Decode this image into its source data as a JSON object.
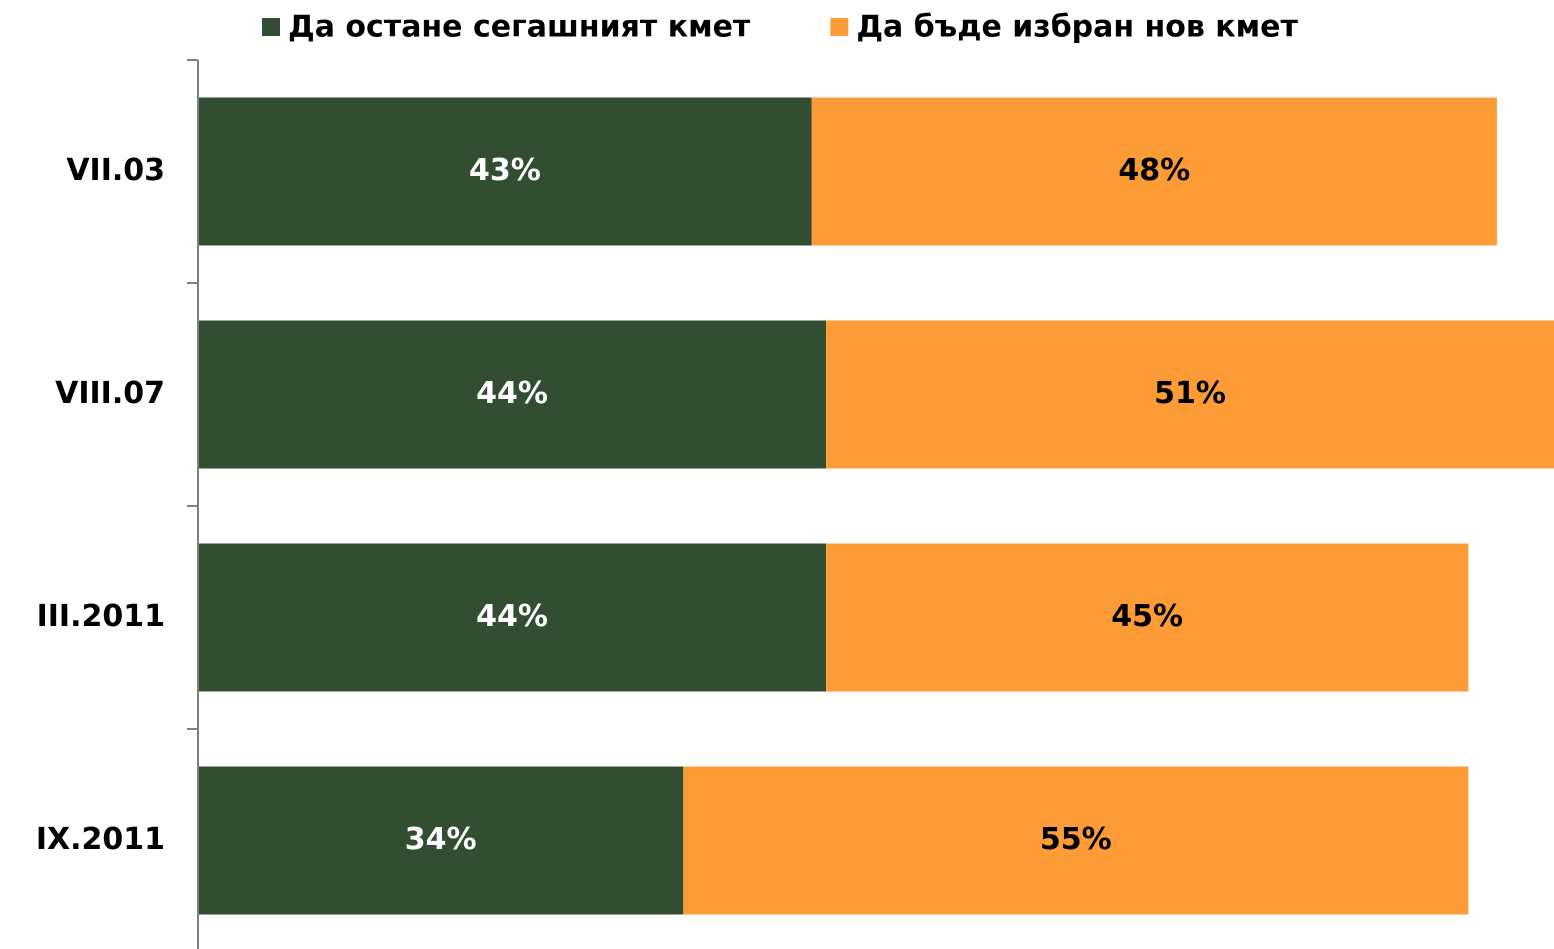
{
  "chart_data": {
    "type": "stacked-barh",
    "categories": [
      "VII.03",
      "VIII.07",
      "III.2011",
      "IX.2011"
    ],
    "series": [
      {
        "name": "Да остане сегашният кмет",
        "color": "#334d33",
        "label_color": "#ffffff",
        "values": [
          43,
          44,
          44,
          34
        ],
        "value_labels": [
          "43%",
          "44%",
          "44%",
          "34%"
        ]
      },
      {
        "name": "Да бъде избран нов кмет",
        "color": "#fd9b37",
        "label_color": "#000000",
        "values": [
          48,
          51,
          45,
          55
        ],
        "value_labels": [
          "48%",
          "51%",
          "45%",
          "55%"
        ]
      }
    ],
    "xlim": [
      0,
      95
    ],
    "legend": "top"
  }
}
